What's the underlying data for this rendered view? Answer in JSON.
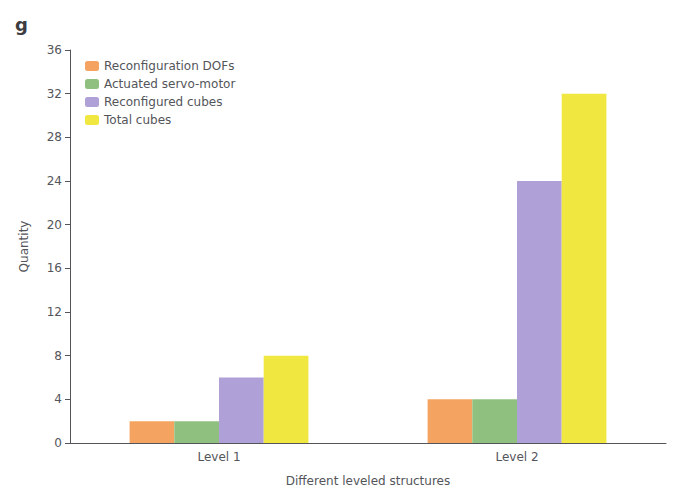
{
  "chart_data": {
    "type": "bar",
    "title": "g",
    "xlabel": "Different leveled structures",
    "ylabel": "Quantity",
    "categories": [
      "Level 1",
      "Level 2"
    ],
    "series": [
      {
        "name": "Reconfiguration DOFs",
        "color": "#F4A460",
        "values": [
          2,
          4
        ]
      },
      {
        "name": "Actuated servo-motor",
        "color": "#90C080",
        "values": [
          2,
          4
        ]
      },
      {
        "name": "Reconfigured cubes",
        "color": "#B0A0D8",
        "values": [
          6,
          24
        ]
      },
      {
        "name": "Total cubes",
        "color": "#F0E840",
        "values": [
          8,
          32
        ]
      }
    ],
    "ylim": [
      0,
      36
    ],
    "yticks": [
      0,
      4,
      8,
      12,
      16,
      20,
      24,
      28,
      32,
      36
    ],
    "grid": false,
    "legend": "upper left"
  }
}
